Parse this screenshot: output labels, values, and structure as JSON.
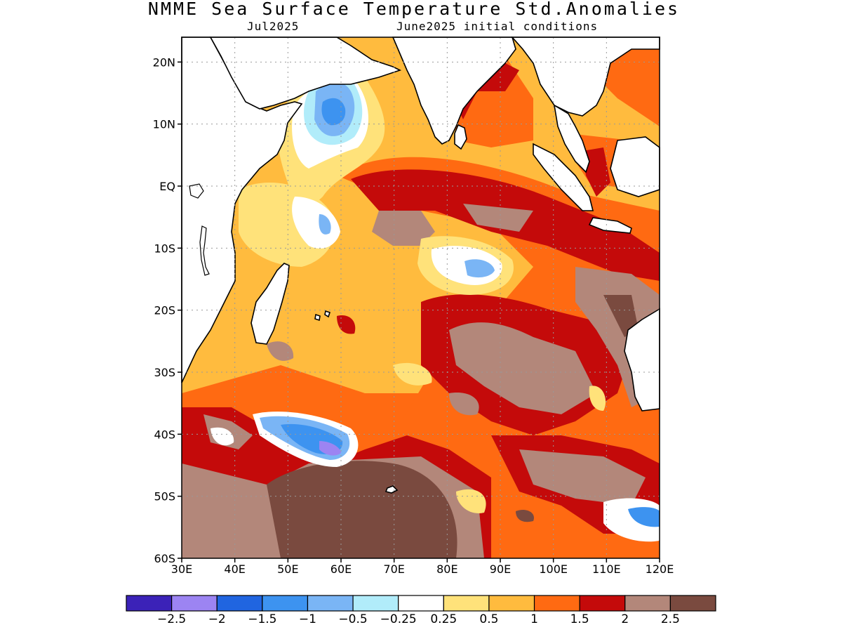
{
  "title": "NMME Sea Surface Temperature Std.Anomalies",
  "subtitle_left": "Jul2025",
  "subtitle_right": "June2025 initial conditions",
  "map": {
    "lat_ticks": [
      "20N",
      "10N",
      "EQ",
      "10S",
      "20S",
      "30S",
      "40S",
      "50S",
      "60S"
    ],
    "lon_ticks": [
      "30E",
      "40E",
      "50E",
      "60E",
      "70E",
      "80E",
      "90E",
      "100E",
      "110E",
      "120E"
    ],
    "lat_values": [
      20,
      10,
      0,
      -10,
      -20,
      -30,
      -40,
      -50,
      -60
    ],
    "lon_values": [
      30,
      40,
      50,
      60,
      70,
      80,
      90,
      100,
      110,
      120
    ],
    "lat_range": [
      -60,
      24
    ],
    "lon_range": [
      30,
      120
    ],
    "grid": true
  },
  "colorbar": {
    "labels": [
      "−2.5",
      "−2",
      "−1.5",
      "−1",
      "−0.5",
      "−0.25",
      "0.25",
      "0.5",
      "1",
      "1.5",
      "2",
      "2.5"
    ],
    "colors": [
      "#3b22b8",
      "#9c84f2",
      "#2065e0",
      "#3d93f0",
      "#7ab5f5",
      "#b1ecfa",
      "#ffffff",
      "#ffe27a",
      "#ffbb3e",
      "#ff6a12",
      "#c40a0a",
      "#b3877a",
      "#7a4a3f"
    ]
  }
}
